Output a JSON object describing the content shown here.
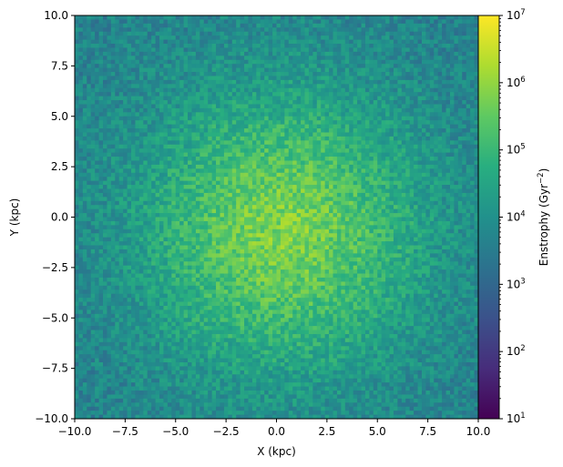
{
  "chart_data": {
    "type": "heatmap",
    "title": "",
    "xlabel": "X (kpc)",
    "ylabel": "Y (kpc)",
    "xlim": [
      -10.0,
      10.0
    ],
    "ylim": [
      -10.0,
      10.0
    ],
    "x_ticks": [
      -10.0,
      -7.5,
      -5.0,
      -2.5,
      0.0,
      2.5,
      5.0,
      7.5,
      10.0
    ],
    "y_ticks": [
      -10.0,
      -7.5,
      -5.0,
      -2.5,
      0.0,
      2.5,
      5.0,
      7.5,
      10.0
    ],
    "x_tick_labels": [
      "−10.0",
      "−7.5",
      "−5.0",
      "−2.5",
      "0.0",
      "2.5",
      "5.0",
      "7.5",
      "10.0"
    ],
    "y_tick_labels": [
      "−10.0",
      "−7.5",
      "−5.0",
      "−2.5",
      "0.0",
      "2.5",
      "5.0",
      "7.5",
      "10.0"
    ],
    "colormap": "viridis",
    "grid": false,
    "colorbar": {
      "label_main": "Enstrophy (Gyr",
      "label_sup": "−2",
      "label_close": ")",
      "scale": "log",
      "range": [
        10,
        10000000
      ],
      "ticks": [
        {
          "value": 10,
          "base": "10",
          "exp": "1"
        },
        {
          "value": 100,
          "base": "10",
          "exp": "2"
        },
        {
          "value": 1000,
          "base": "10",
          "exp": "3"
        },
        {
          "value": 10000,
          "base": "10",
          "exp": "4"
        },
        {
          "value": 100000,
          "base": "10",
          "exp": "5"
        },
        {
          "value": 1000000,
          "base": "10",
          "exp": "6"
        },
        {
          "value": 10000000,
          "base": "10",
          "exp": "7"
        }
      ]
    },
    "field_description": {
      "center": [
        0.3,
        -0.7
      ],
      "peak_log_value": 5.8,
      "edge_log_value": 3.6,
      "falloff_kpc": 7.0
    }
  }
}
